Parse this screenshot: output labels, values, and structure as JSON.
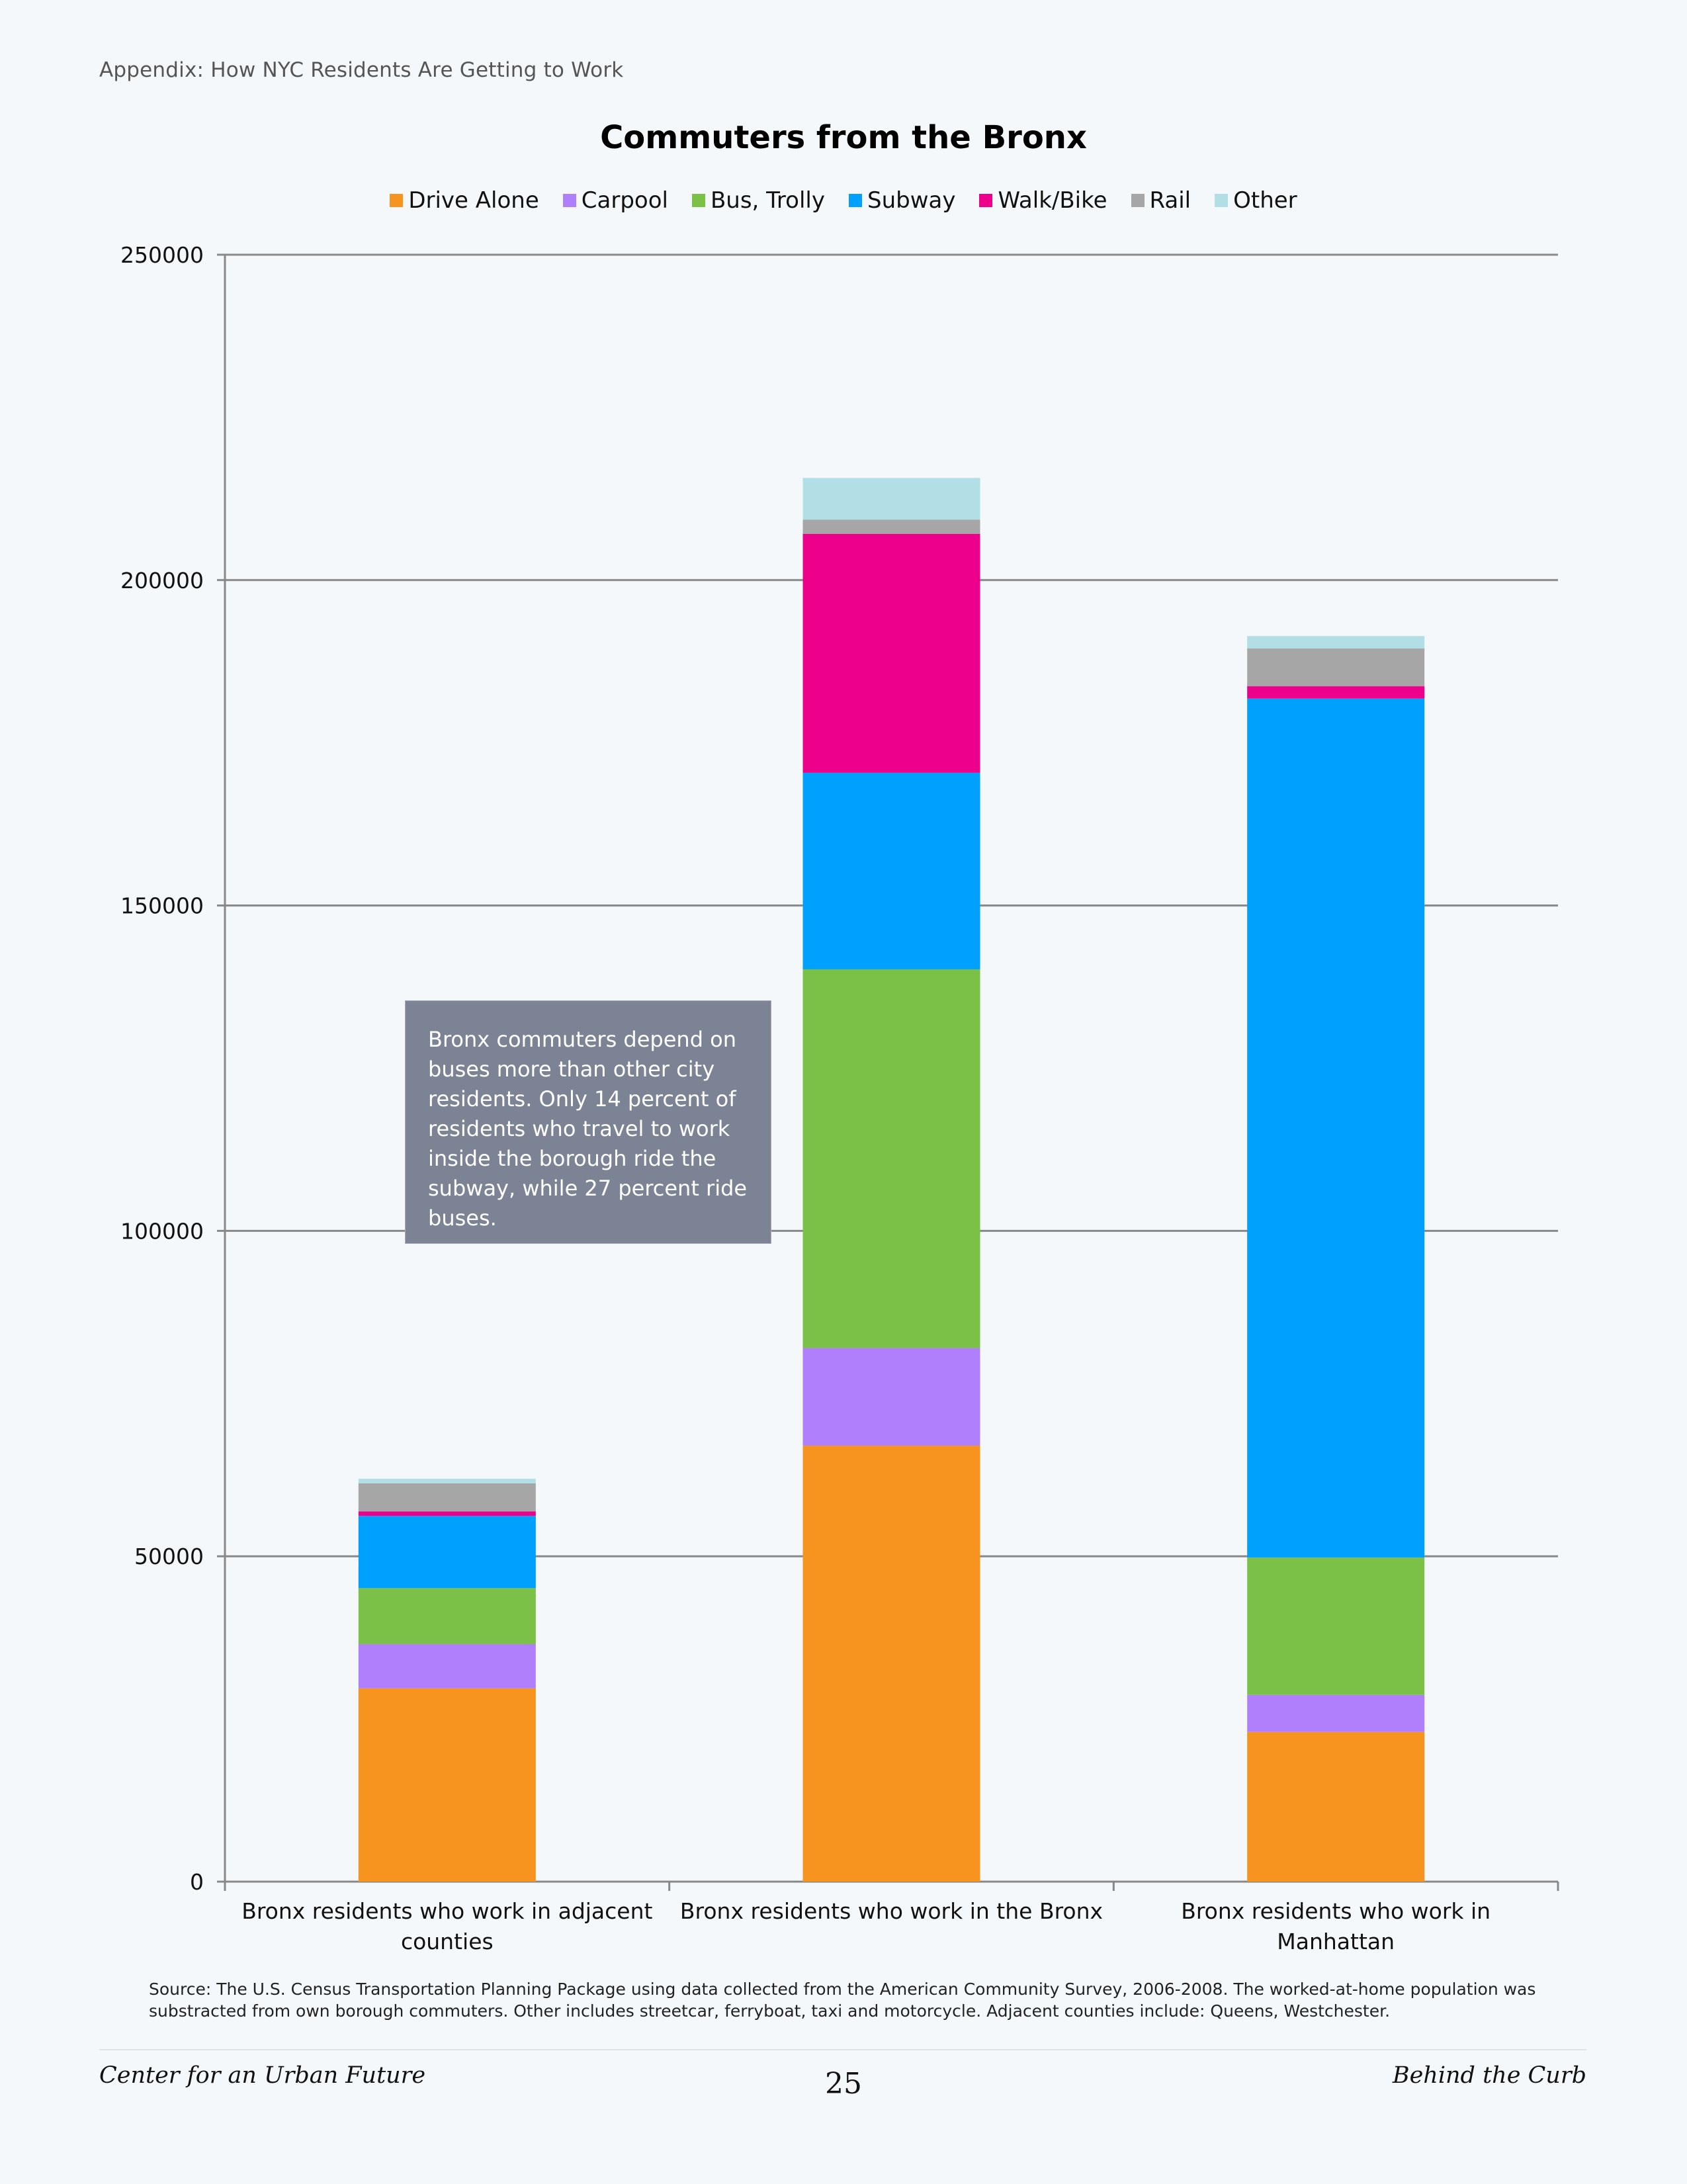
{
  "page": {
    "header": "Appendix: How NYC Residents Are Getting to Work",
    "callout": "Bronx commuters depend on buses more than other city residents. Only 14 percent of residents who travel to work inside the borough ride the subway, while 27 percent ride buses.",
    "source_line1": "Source: The U.S. Census Transportation Planning Package using data collected from the American Community Survey, 2006-2008. The worked-at-home population was",
    "source_line2": "substracted from own borough commuters. Other includes streetcar, ferryboat, taxi and motorcycle. Adjacent counties include: Queens, Westchester.",
    "footer_left": "Center for an Urban Future",
    "page_number": "25",
    "footer_right": "Behind the Curb"
  },
  "chart_data": {
    "type": "bar",
    "stacked": true,
    "title": "Commuters from the Bronx",
    "xlabel": "",
    "ylabel": "",
    "ylim": [
      0,
      250000
    ],
    "yticks": [
      0,
      50000,
      100000,
      150000,
      200000,
      250000
    ],
    "ytick_labels": [
      "0",
      "50000",
      "100000",
      "150000",
      "200000",
      "250000"
    ],
    "grid": true,
    "legend_position": "top",
    "categories": [
      "Bronx residents who work in adjacent counties",
      "Bronx residents who work in the Bronx",
      "Bronx residents who work in Manhattan"
    ],
    "series": [
      {
        "name": "Drive Alone",
        "color": "#f7941f",
        "values": [
          29700,
          67000,
          23000
        ]
      },
      {
        "name": "Carpool",
        "color": "#b080fc",
        "values": [
          6800,
          15000,
          5700
        ]
      },
      {
        "name": "Bus, Trolly",
        "color": "#7bc047",
        "values": [
          8600,
          58200,
          21100
        ]
      },
      {
        "name": "Subway",
        "color": "#00a0ff",
        "values": [
          11100,
          30200,
          132000
        ]
      },
      {
        "name": "Walk/Bike",
        "color": "#ec008c",
        "values": [
          700,
          36700,
          1900
        ]
      },
      {
        "name": "Rail",
        "color": "#a6a6a6",
        "values": [
          4300,
          2200,
          5800
        ]
      },
      {
        "name": "Other",
        "color": "#b1dfe5",
        "values": [
          700,
          6400,
          1900
        ]
      }
    ]
  }
}
